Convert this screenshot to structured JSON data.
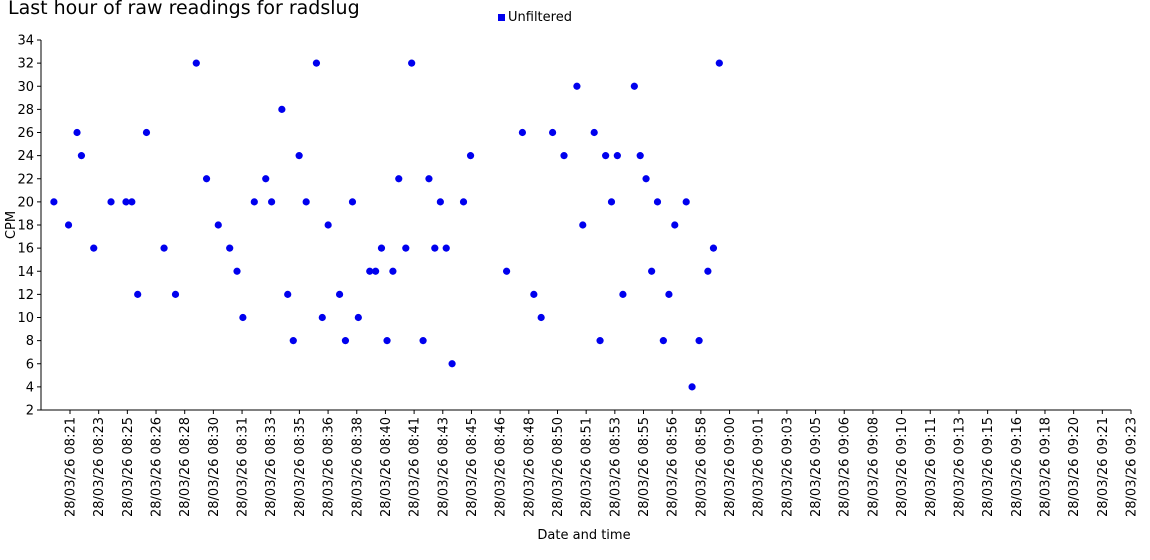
{
  "chart_data": {
    "type": "scatter",
    "title": "Last hour of raw readings for radslug",
    "xlabel": "Date and time",
    "ylabel": "CPM",
    "ylim": [
      2,
      34
    ],
    "yticks": [
      2,
      4,
      6,
      8,
      10,
      12,
      14,
      16,
      18,
      20,
      22,
      24,
      26,
      28,
      30,
      32,
      34
    ],
    "xlim": [
      "28/03/26 08:21",
      "28/03/26 09:23"
    ],
    "xtick_labels": [
      "28/03/26 08:21",
      "28/03/26 08:23",
      "28/03/26 08:25",
      "28/03/26 08:26",
      "28/03/26 08:28",
      "28/03/26 08:30",
      "28/03/26 08:31",
      "28/03/26 08:33",
      "28/03/26 08:35",
      "28/03/26 08:36",
      "28/03/26 08:38",
      "28/03/26 08:40",
      "28/03/26 08:41",
      "28/03/26 08:43",
      "28/03/26 08:45",
      "28/03/26 08:46",
      "28/03/26 08:48",
      "28/03/26 08:50",
      "28/03/26 08:51",
      "28/03/26 08:53",
      "28/03/26 08:55",
      "28/03/26 08:56",
      "28/03/26 08:58",
      "28/03/26 09:00",
      "28/03/26 09:01",
      "28/03/26 09:03",
      "28/03/26 09:05",
      "28/03/26 09:06",
      "28/03/26 09:08",
      "28/03/26 09:10",
      "28/03/26 09:11",
      "28/03/26 09:13",
      "28/03/26 09:15",
      "28/03/26 09:16",
      "28/03/26 09:18",
      "28/03/26 09:20",
      "28/03/26 09:21",
      "28/03/26 09:23"
    ],
    "legend": {
      "position": "top-center",
      "entries": [
        "Unfiltered"
      ]
    },
    "grid": false,
    "series": [
      {
        "name": "Unfiltered",
        "color": "#0000ee",
        "marker": "circle",
        "points": [
          [
            "28/03/26 08:21:44",
            20
          ],
          [
            "28/03/26 08:22:34",
            18
          ],
          [
            "28/03/26 08:23:03",
            26
          ],
          [
            "28/03/26 08:23:18",
            24
          ],
          [
            "28/03/26 08:24:00",
            16
          ],
          [
            "28/03/26 08:24:59",
            20
          ],
          [
            "28/03/26 08:25:50",
            20
          ],
          [
            "28/03/26 08:26:10",
            20
          ],
          [
            "28/03/26 08:26:30",
            12
          ],
          [
            "28/03/26 08:27:00",
            26
          ],
          [
            "28/03/26 08:28:00",
            16
          ],
          [
            "28/03/26 08:28:39",
            12
          ],
          [
            "28/03/26 08:29:50",
            32
          ],
          [
            "28/03/26 08:30:25",
            22
          ],
          [
            "28/03/26 08:31:05",
            18
          ],
          [
            "28/03/26 08:31:44",
            16
          ],
          [
            "28/03/26 08:32:09",
            14
          ],
          [
            "28/03/26 08:32:29",
            10
          ],
          [
            "28/03/26 08:33:08",
            20
          ],
          [
            "28/03/26 08:33:47",
            22
          ],
          [
            "28/03/26 08:34:07",
            20
          ],
          [
            "28/03/26 08:34:42",
            28
          ],
          [
            "28/03/26 08:35:02",
            12
          ],
          [
            "28/03/26 08:35:21",
            8
          ],
          [
            "28/03/26 08:35:41",
            24
          ],
          [
            "28/03/26 08:36:05",
            20
          ],
          [
            "28/03/26 08:36:40",
            32
          ],
          [
            "28/03/26 08:37:00",
            10
          ],
          [
            "28/03/26 08:37:20",
            18
          ],
          [
            "28/03/26 08:37:59",
            12
          ],
          [
            "28/03/26 08:38:19",
            8
          ],
          [
            "28/03/26 08:38:43",
            20
          ],
          [
            "28/03/26 08:39:03",
            10
          ],
          [
            "28/03/26 08:39:42",
            14
          ],
          [
            "28/03/26 08:40:02",
            14
          ],
          [
            "28/03/26 08:40:22",
            16
          ],
          [
            "28/03/26 08:40:41",
            8
          ],
          [
            "28/03/26 08:41:01",
            14
          ],
          [
            "28/03/26 08:41:21",
            22
          ],
          [
            "28/03/26 08:41:45",
            16
          ],
          [
            "28/03/26 08:42:05",
            32
          ],
          [
            "28/03/26 08:42:44",
            8
          ],
          [
            "28/03/26 08:43:04",
            22
          ],
          [
            "28/03/26 08:43:24",
            16
          ],
          [
            "28/03/26 08:43:43",
            20
          ],
          [
            "28/03/26 08:44:03",
            16
          ],
          [
            "28/03/26 08:44:23",
            6
          ],
          [
            "28/03/26 08:45:02",
            20
          ],
          [
            "28/03/26 08:45:26",
            24
          ],
          [
            "28/03/26 08:47:29",
            14
          ],
          [
            "28/03/26 08:48:23",
            26
          ],
          [
            "28/03/26 08:49:02",
            12
          ],
          [
            "28/03/26 08:49:27",
            10
          ],
          [
            "28/03/26 08:50:06",
            26
          ],
          [
            "28/03/26 08:50:45",
            24
          ],
          [
            "28/03/26 08:51:29",
            30
          ],
          [
            "28/03/26 08:51:49",
            18
          ],
          [
            "28/03/26 08:52:28",
            26
          ],
          [
            "28/03/26 08:52:48",
            8
          ],
          [
            "28/03/26 08:53:07",
            24
          ],
          [
            "28/03/26 08:53:27",
            20
          ],
          [
            "28/03/26 08:53:47",
            24
          ],
          [
            "28/03/26 08:54:06",
            12
          ],
          [
            "28/03/26 08:54:45",
            30
          ],
          [
            "28/03/26 08:55:05",
            24
          ],
          [
            "28/03/26 08:55:25",
            22
          ],
          [
            "28/03/26 08:55:44",
            14
          ],
          [
            "28/03/26 08:56:04",
            20
          ],
          [
            "28/03/26 08:56:24",
            8
          ],
          [
            "28/03/26 08:56:43",
            12
          ],
          [
            "28/03/26 08:57:03",
            18
          ],
          [
            "28/03/26 08:57:42",
            20
          ],
          [
            "28/03/26 08:58:02",
            4
          ],
          [
            "28/03/26 08:58:26",
            8
          ],
          [
            "28/03/26 08:58:56",
            14
          ],
          [
            "28/03/26 08:59:15",
            16
          ],
          [
            "28/03/26 08:59:35",
            32
          ]
        ]
      }
    ]
  }
}
